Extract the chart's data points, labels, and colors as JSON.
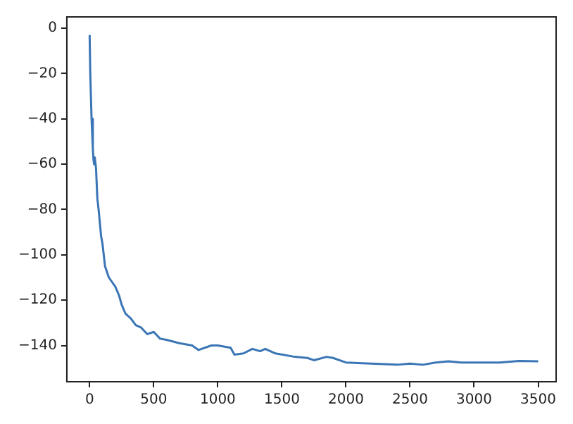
{
  "chart_data": {
    "type": "line",
    "x": [
      0,
      5,
      15,
      25,
      30,
      35,
      40,
      50,
      60,
      70,
      90,
      100,
      120,
      150,
      200,
      230,
      250,
      280,
      320,
      360,
      400,
      450,
      500,
      550,
      600,
      700,
      800,
      850,
      950,
      1000,
      1100,
      1130,
      1200,
      1270,
      1330,
      1370,
      1450,
      1600,
      1700,
      1750,
      1850,
      1900,
      2000,
      2200,
      2400,
      2500,
      2600,
      2700,
      2800,
      2900,
      3000,
      3200,
      3350,
      3500
    ],
    "series": [
      {
        "color": "#3a75b5",
        "values": [
          -3,
          -20,
          -40,
          -53,
          -58,
          -60,
          -57,
          -62,
          -75,
          -80,
          -92,
          -95,
          -105,
          -110,
          -114,
          -118,
          -122,
          -126,
          -128,
          -131,
          -132,
          -135,
          -134,
          -137,
          -137.5,
          -139,
          -140,
          -142,
          -140,
          -140,
          -141,
          -144,
          -143.5,
          -141.5,
          -142.5,
          -141.5,
          -143.5,
          -145,
          -145.5,
          -146.5,
          -145,
          -145.5,
          -147.5,
          -148,
          -148.5,
          -148,
          -148.5,
          -147.5,
          -147,
          -147.5,
          -147.5,
          -147.5,
          -146.8,
          -147
        ]
      }
    ],
    "xlim": [
      -178,
      3640
    ],
    "xticks": [
      0,
      500,
      1000,
      1500,
      2000,
      2500,
      3000,
      3500
    ],
    "ylim": [
      -156,
      5
    ],
    "yticks": [
      0,
      -20,
      -40,
      -60,
      -80,
      -100,
      -120,
      -140
    ],
    "grid": false,
    "legend": false
  }
}
